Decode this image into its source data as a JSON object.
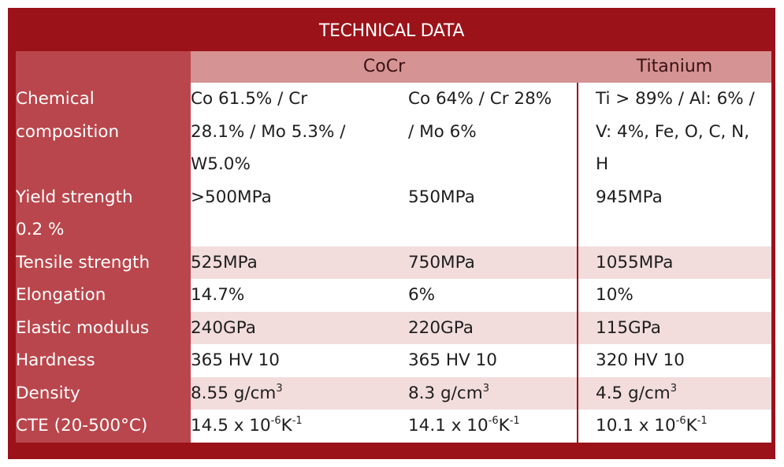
{
  "title": "TECHNICAL DATA",
  "columns": [
    "CoCr",
    "Titanium"
  ],
  "rows": {
    "chemical": {
      "label_lines": [
        "Chemical",
        "composition"
      ],
      "v1_lines": [
        "Co 61.5% / Cr",
        "28.1% / Mo 5.3% /",
        "W5.0%"
      ],
      "v2_lines": [
        "Co 64% / Cr 28%",
        "/ Mo 6%"
      ],
      "v3_lines": [
        "Ti > 89% / Al: 6% /",
        "V: 4%, Fe, O, C, N,",
        "H"
      ]
    },
    "yield": {
      "label_lines": [
        "Yield strength",
        "0.2 %"
      ],
      "v1": ">500MPa",
      "v2": "550MPa",
      "v3": "945MPa"
    },
    "tensile": {
      "label": "Tensile strength",
      "v1": "525MPa",
      "v2": "750MPa",
      "v3": "1055MPa"
    },
    "elongation": {
      "label": "Elongation",
      "v1": "14.7%",
      "v2": "6%",
      "v3": "10%"
    },
    "elastic": {
      "label": "Elastic modulus",
      "v1": "240GPa",
      "v2": "220GPa",
      "v3": "115GPa"
    },
    "hardness": {
      "label": "Hardness",
      "v1": "365 HV 10",
      "v2": "365 HV 10",
      "v3": "320 HV 10"
    },
    "density": {
      "label": "Density",
      "unit_base": " g/cm",
      "unit_exp": "3",
      "v1": "8.55",
      "v2": "8.3",
      "v3": "4.5"
    },
    "cte": {
      "label": "CTE (20-500°C)",
      "times": " x 10",
      "exp1": "-6",
      "unit": "K",
      "exp2": "-1",
      "v1": "14.5",
      "v2": "14.1",
      "v3": "10.1"
    }
  }
}
